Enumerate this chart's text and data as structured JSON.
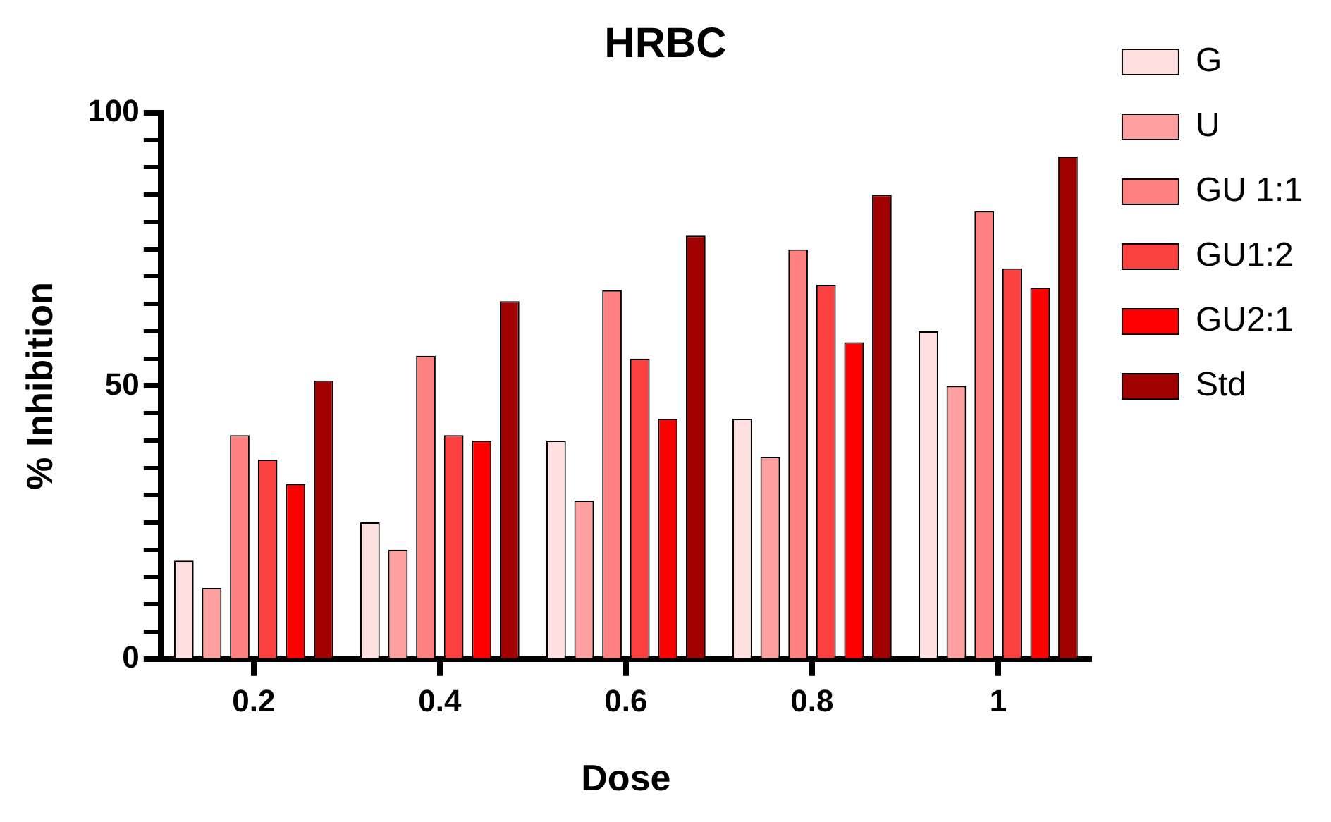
{
  "chart_data": {
    "type": "bar",
    "title": "HRBC",
    "xlabel": "Dose",
    "ylabel": "% Inhibition",
    "categories": [
      "0.2",
      "0.4",
      "0.6",
      "0.8",
      "1"
    ],
    "series": [
      {
        "name": "G",
        "color": "#ffdfe0",
        "values": [
          18,
          25,
          40,
          44,
          60
        ]
      },
      {
        "name": "U",
        "color": "#ffa0a0",
        "values": [
          13,
          20,
          29,
          37,
          50
        ]
      },
      {
        "name": "GU 1:1",
        "color": "#ff8080",
        "values": [
          41,
          55.5,
          67.5,
          75,
          82
        ]
      },
      {
        "name": "GU1:2",
        "color": "#fb4040",
        "values": [
          36.5,
          41,
          55,
          68.5,
          71.5
        ]
      },
      {
        "name": "GU2:1",
        "color": "#ff0000",
        "values": [
          32,
          40,
          44,
          58,
          68
        ]
      },
      {
        "name": "Std",
        "color": "#a00000",
        "values": [
          51,
          65.5,
          77.5,
          85,
          92
        ]
      }
    ],
    "ylim": [
      0,
      100
    ],
    "yticks": [
      0,
      {
        "value": 5,
        "label": null
      },
      {
        "value": 10,
        "label": null
      },
      {
        "value": 15,
        "label": null
      },
      {
        "value": 20,
        "label": null
      },
      {
        "value": 25,
        "label": null
      },
      {
        "value": 30,
        "label": null
      },
      {
        "value": 35,
        "label": null
      },
      {
        "value": 40,
        "label": null
      },
      {
        "value": 45,
        "label": null
      },
      50,
      {
        "value": 55,
        "label": null
      },
      {
        "value": 60,
        "label": null
      },
      {
        "value": 65,
        "label": null
      },
      {
        "value": 70,
        "label": null
      },
      {
        "value": 75,
        "label": null
      },
      {
        "value": 80,
        "label": null
      },
      {
        "value": 85,
        "label": null
      },
      {
        "value": 90,
        "label": null
      },
      {
        "value": 95,
        "label": null
      },
      100
    ],
    "grid": false,
    "legend": "right"
  }
}
